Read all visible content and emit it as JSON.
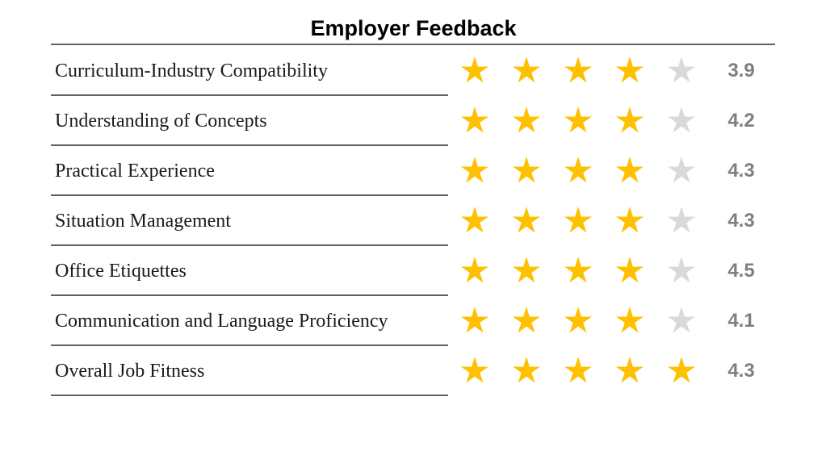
{
  "chart_data": {
    "type": "table",
    "title": "Employer Feedback",
    "categories": [
      "Curriculum-Industry Compatibility",
      "Understanding of Concepts",
      "Practical Experience",
      "Situation Management",
      "Office Etiquettes",
      "Communication and Language Proficiency",
      "Overall Job Fitness"
    ],
    "values": [
      3.9,
      4.2,
      4.3,
      4.3,
      4.5,
      4.1,
      4.3
    ],
    "value_labels": [
      "3.9",
      "4.2",
      "4.3",
      "4.3",
      "4.5",
      "4.1",
      "4.3"
    ],
    "stars_filled": [
      4,
      4,
      4,
      4,
      4,
      4,
      5
    ],
    "max_stars": 5,
    "colors": {
      "star_filled": "#FFC000",
      "star_empty": "#D9D9D9",
      "score_text": "#7F7F7F",
      "rule_line": "#000000"
    }
  }
}
